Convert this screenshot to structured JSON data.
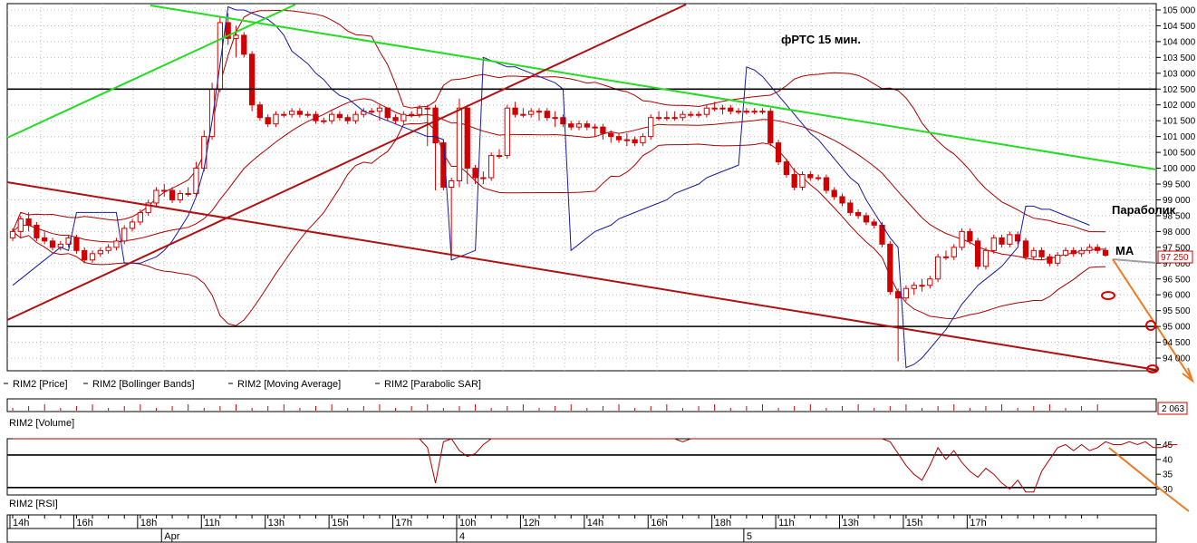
{
  "chart_data": {
    "type": "candlestick",
    "instrument_title": "фРТС   15 мин.",
    "annotations": {
      "parabolic": "Параболик",
      "ma": "MA"
    },
    "price_axis": {
      "ylim": [
        93600,
        105200
      ],
      "ticks": [
        "105 000",
        "104 500",
        "104 000",
        "103 500",
        "103 000",
        "102 500",
        "102 000",
        "101 500",
        "101 000",
        "100 500",
        "100 000",
        "99 500",
        "99 000",
        "98 500",
        "98 000",
        "97 500",
        "97 000",
        "96 500",
        "96 000",
        "95 500",
        "95 000",
        "94 500",
        "94 000"
      ],
      "tick_values": [
        105000,
        104500,
        104000,
        103500,
        103000,
        102500,
        102000,
        101500,
        101000,
        100500,
        100000,
        99500,
        99000,
        98500,
        98000,
        97500,
        97000,
        96500,
        96000,
        95500,
        95000,
        94500,
        94000
      ],
      "last_price_label": "97 250",
      "last_price": 97250,
      "horizontal_levels": [
        102500,
        95000
      ]
    },
    "legend": [
      {
        "name": "RIM2 [Price]",
        "color": "#d00000"
      },
      {
        "name": "RIM2 [Bollinger Bands]",
        "color": "#b00000"
      },
      {
        "name": "RIM2 [Moving Average]",
        "color": "#b00000"
      },
      {
        "name": "RIM2 [Parabolic SAR]",
        "color": "#1a1a9e"
      }
    ],
    "volume": {
      "title": "RIM2 [Volume]",
      "last_label": "2 063"
    },
    "rsi": {
      "title": "RIM2 [RSI]",
      "ticks": [
        "45",
        "40",
        "35",
        "30"
      ],
      "tick_values": [
        45,
        40,
        35,
        30
      ],
      "ylim": [
        28,
        47
      ],
      "levels": [
        41.5,
        30.5
      ],
      "values": [
        47,
        47,
        47,
        47,
        47,
        47,
        47,
        47,
        47,
        47,
        47,
        47,
        47,
        47,
        47,
        47,
        47,
        47,
        47,
        47,
        47,
        47,
        47,
        47,
        47,
        47,
        47,
        47,
        47,
        47,
        47,
        47,
        47,
        47,
        47,
        47,
        47,
        47,
        47,
        47,
        47,
        47,
        47,
        47,
        47,
        47,
        47,
        47,
        47,
        47,
        47,
        47,
        44,
        32,
        46,
        47,
        43,
        41,
        42,
        45,
        47,
        47,
        47,
        47,
        47,
        47,
        47,
        47,
        47,
        47,
        47,
        47,
        47,
        47,
        47,
        47,
        47,
        47,
        47,
        47,
        47,
        47,
        47,
        47,
        46,
        47,
        47,
        47,
        47,
        47,
        47,
        47,
        47,
        47,
        47,
        47,
        47,
        47,
        47,
        47,
        47,
        47,
        47,
        47,
        47,
        47,
        47,
        47,
        47,
        47,
        46,
        42,
        38,
        35,
        33,
        38,
        44,
        40,
        43,
        39,
        36,
        34,
        37,
        35,
        32,
        30,
        33,
        29,
        29,
        36,
        40,
        44,
        45,
        43,
        45,
        43,
        44,
        46,
        45,
        45,
        46,
        45,
        46,
        44,
        44,
        45,
        45
      ]
    },
    "x_axis": {
      "hour_labels": [
        "14h",
        "16h",
        "18h",
        "11h",
        "13h",
        "15h",
        "17h",
        "10h",
        "12h",
        "14h",
        "16h",
        "18h",
        "11h",
        "13h",
        "15h",
        "17h"
      ],
      "hour_label_index": [
        0,
        8,
        16,
        24,
        32,
        40,
        48,
        56,
        64,
        72,
        80,
        88,
        96,
        104,
        112,
        120
      ],
      "date_labels": [
        "Apr",
        "4",
        "5"
      ],
      "date_label_index": [
        19,
        56,
        92
      ]
    },
    "candles": {
      "open": [
        97800,
        98000,
        98400,
        98200,
        97800,
        97700,
        97500,
        97600,
        97800,
        97400,
        97100,
        97300,
        97400,
        97500,
        97700,
        98100,
        98300,
        98600,
        98900,
        99300,
        99300,
        99000,
        99200,
        99200,
        100000,
        101000,
        102500,
        104600,
        104100,
        104200,
        103600,
        102000,
        101600,
        101400,
        101700,
        101700,
        101800,
        101700,
        101700,
        101500,
        101500,
        101700,
        101600,
        101500,
        101700,
        101800,
        101800,
        101900,
        101600,
        101500,
        101700,
        101700,
        101900,
        101900,
        100800,
        99400,
        99600,
        101900,
        100000,
        99700,
        99700,
        100400,
        100400,
        101900,
        101700,
        101700,
        101800,
        101800,
        101600,
        101600,
        101400,
        101300,
        101400,
        101300,
        101300,
        101100,
        101000,
        100900,
        100900,
        100800,
        101000,
        101600,
        101600,
        101600,
        101600,
        101700,
        101700,
        101700,
        101900,
        101900,
        101900,
        101800,
        101800,
        101800,
        101800,
        101800,
        100800,
        100200,
        99800,
        99400,
        99800,
        99700,
        99700,
        99300,
        99100,
        98900,
        98600,
        98500,
        98300,
        98200,
        97600,
        96100,
        95900,
        96200,
        96300,
        96300,
        96500,
        97200,
        97200,
        97500,
        98000,
        97700,
        96900,
        97400,
        97800,
        97600,
        97900,
        97700,
        97200,
        97400,
        97200,
        97000,
        97250,
        97400,
        97300,
        97400,
        97500,
        97400
      ],
      "close": [
        98000,
        98400,
        98200,
        97800,
        97700,
        97500,
        97600,
        97800,
        97400,
        97100,
        97300,
        97400,
        97500,
        97700,
        98100,
        98300,
        98600,
        98900,
        99300,
        99300,
        99000,
        99200,
        99200,
        100000,
        101000,
        102500,
        104600,
        104100,
        104200,
        103600,
        102000,
        101600,
        101400,
        101700,
        101700,
        101800,
        101700,
        101700,
        101500,
        101500,
        101700,
        101600,
        101500,
        101700,
        101800,
        101800,
        101900,
        101600,
        101500,
        101700,
        101700,
        101900,
        101900,
        100800,
        99400,
        99600,
        101900,
        100000,
        99700,
        99700,
        100400,
        100400,
        101900,
        101700,
        101700,
        101800,
        101800,
        101600,
        101600,
        101400,
        101300,
        101400,
        101300,
        101300,
        101100,
        101000,
        100900,
        100900,
        100800,
        101000,
        101600,
        101600,
        101600,
        101600,
        101700,
        101700,
        101700,
        101900,
        101900,
        101900,
        101800,
        101800,
        101800,
        101800,
        101800,
        100800,
        100200,
        99800,
        99400,
        99800,
        99700,
        99700,
        99300,
        99100,
        98900,
        98600,
        98500,
        98300,
        98200,
        97600,
        96100,
        95900,
        96200,
        96300,
        96300,
        96500,
        97200,
        97200,
        97500,
        98000,
        97700,
        96900,
        97400,
        97800,
        97600,
        97900,
        97700,
        97200,
        97400,
        97200,
        97000,
        97250,
        97400,
        97300,
        97400,
        97500,
        97400,
        97250
      ],
      "high": [
        98100,
        98500,
        98600,
        98300,
        98000,
        97800,
        97700,
        97900,
        97900,
        97500,
        97400,
        97500,
        97600,
        97800,
        98200,
        98400,
        98700,
        99000,
        99400,
        99500,
        99400,
        99300,
        99400,
        100200,
        101200,
        102700,
        104800,
        104900,
        104500,
        104300,
        103700,
        102100,
        101700,
        101800,
        101800,
        101900,
        101900,
        101800,
        101800,
        101600,
        101800,
        101800,
        101700,
        101800,
        101900,
        101900,
        102000,
        101900,
        101700,
        101800,
        101800,
        102000,
        102000,
        102000,
        100900,
        99700,
        102200,
        102000,
        100100,
        99900,
        100500,
        100600,
        102000,
        102100,
        101900,
        101900,
        101900,
        101900,
        101800,
        101700,
        101500,
        101500,
        101500,
        101400,
        101400,
        101200,
        101100,
        101100,
        101000,
        101100,
        101700,
        101800,
        101800,
        101800,
        101800,
        101800,
        101800,
        102000,
        102100,
        102000,
        102000,
        101900,
        101900,
        101900,
        101900,
        101900,
        100900,
        100300,
        100000,
        99900,
        99900,
        99800,
        99800,
        99400,
        99200,
        99000,
        98700,
        98600,
        98400,
        98300,
        97700,
        96200,
        96300,
        96400,
        96500,
        96600,
        97300,
        97400,
        97600,
        98100,
        98100,
        97800,
        97500,
        97900,
        97900,
        98000,
        98000,
        97800,
        97500,
        97500,
        97300,
        97350,
        97500,
        97500,
        97500,
        97600,
        97600,
        97500
      ],
      "low": [
        97700,
        97800,
        98000,
        97700,
        97600,
        97400,
        97400,
        97500,
        97300,
        97000,
        97000,
        97200,
        97300,
        97400,
        97600,
        98000,
        98200,
        98500,
        98800,
        99100,
        98900,
        98900,
        99100,
        99100,
        99900,
        100900,
        102400,
        103900,
        103500,
        103500,
        101800,
        101500,
        101300,
        101300,
        101600,
        101600,
        101600,
        101600,
        101400,
        101400,
        101400,
        101500,
        101400,
        101400,
        101600,
        101700,
        101500,
        101500,
        101400,
        101400,
        101600,
        101600,
        100700,
        99300,
        99300,
        97100,
        99400,
        99500,
        99500,
        99500,
        99600,
        100300,
        100300,
        101600,
        101600,
        101600,
        101500,
        101500,
        101300,
        101300,
        101200,
        101200,
        101200,
        101000,
        100900,
        100800,
        100800,
        100700,
        100700,
        100700,
        100900,
        101500,
        101500,
        101500,
        101500,
        101600,
        101600,
        101600,
        101800,
        101700,
        101700,
        101700,
        101700,
        101700,
        101700,
        100700,
        100100,
        99700,
        99300,
        99300,
        99600,
        99600,
        99200,
        99000,
        98800,
        98500,
        98400,
        98200,
        98100,
        97500,
        96000,
        93900,
        95800,
        96000,
        96100,
        96200,
        96400,
        97100,
        97100,
        97400,
        97600,
        96800,
        96800,
        97300,
        97500,
        97500,
        97600,
        97100,
        97100,
        97100,
        96900,
        96900,
        97200,
        97200,
        97200,
        97300,
        97300,
        97200
      ]
    },
    "parabolic_sar": [
      96300,
      96500,
      96700,
      96900,
      97100,
      97300,
      97500,
      97400,
      98600,
      98600,
      98600,
      98600,
      98600,
      98600,
      97000,
      97000,
      97000,
      97100,
      97200,
      97400,
      97700,
      98100,
      98500,
      99100,
      100000,
      101500,
      103300,
      105100,
      105000,
      105000,
      104900,
      104800,
      104700,
      104500,
      104200,
      103700,
      103500,
      103300,
      103000,
      102800,
      102500,
      102300,
      102200,
      102000,
      101800,
      101700,
      101600,
      101500,
      101400,
      101300,
      101200,
      101100,
      101000,
      101000,
      100900,
      97100,
      97200,
      97300,
      97400,
      103500,
      103400,
      103300,
      103200,
      103200,
      103100,
      103000,
      102900,
      102800,
      102700,
      102500,
      97400,
      97600,
      97800,
      98000,
      98100,
      98200,
      98400,
      98500,
      98600,
      98700,
      98800,
      98900,
      99000,
      99200,
      99300,
      99400,
      99500,
      99700,
      99800,
      99900,
      100000,
      100100,
      103200,
      103100,
      102900,
      102600,
      102300,
      102000,
      101700,
      101400,
      101100,
      100900,
      100600,
      100300,
      100000,
      99700,
      99500,
      99000,
      98600,
      98200,
      97800,
      97500,
      93700,
      93800,
      94000,
      94300,
      94600,
      94900,
      95300,
      95700,
      96000,
      96300,
      96500,
      96700,
      96900,
      97200,
      97500,
      98800,
      98800,
      98700,
      98700,
      98600,
      98500,
      98400,
      98300,
      98200
    ]
  }
}
